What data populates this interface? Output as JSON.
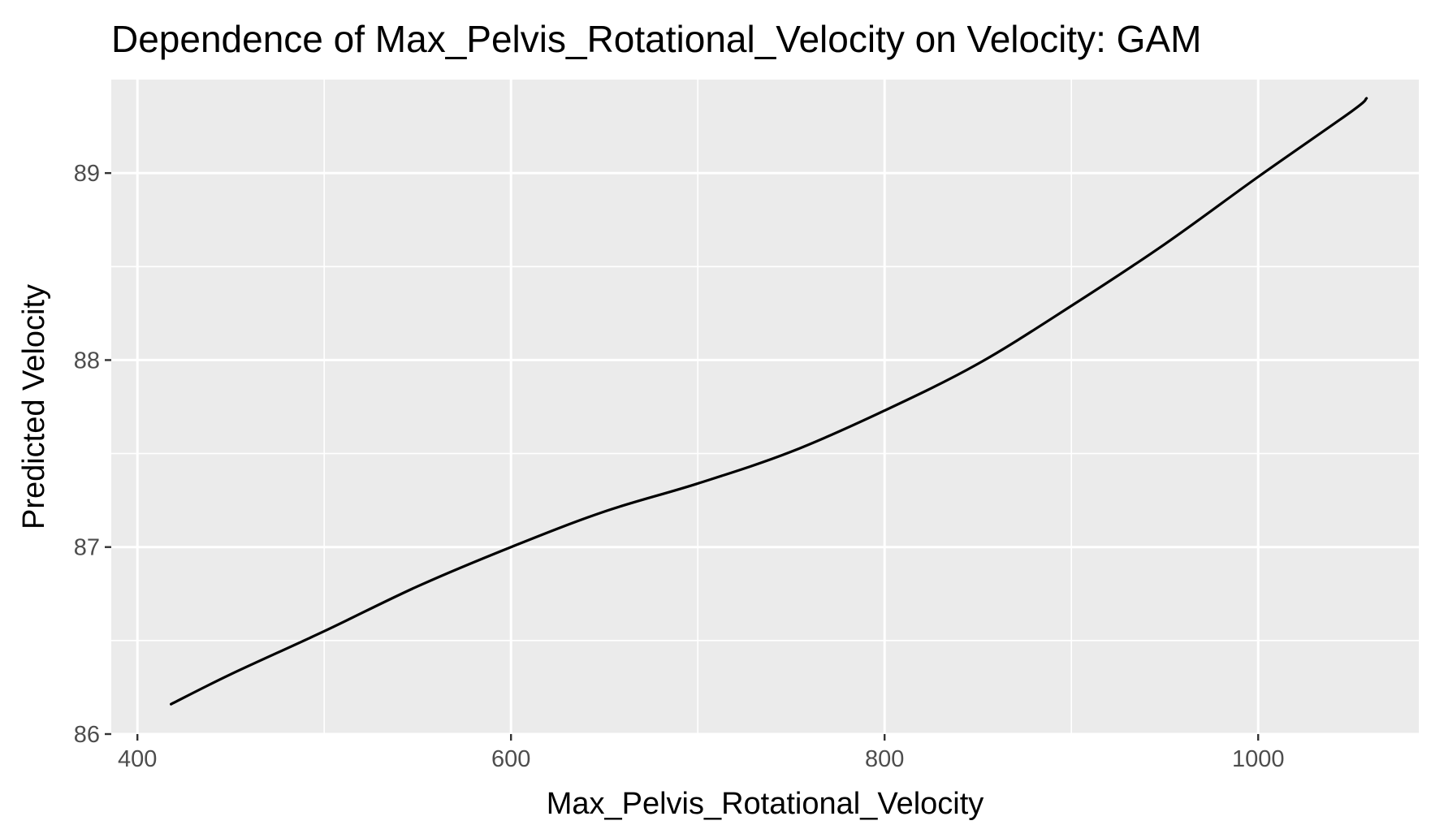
{
  "chart_data": {
    "type": "line",
    "title": "Dependence of Max_Pelvis_Rotational_Velocity on Velocity: GAM",
    "xlabel": "Max_Pelvis_Rotational_Velocity",
    "ylabel": "Predicted Velocity",
    "xlim": [
      386,
      1086
    ],
    "ylim": [
      86,
      89.5
    ],
    "x_ticks": [
      400,
      600,
      800,
      1000
    ],
    "x_tick_labels": [
      "400",
      "600",
      "800",
      "1000"
    ],
    "y_ticks": [
      86,
      87,
      88,
      89
    ],
    "y_tick_labels": [
      "86",
      "87",
      "88",
      "89"
    ],
    "x_minor": [
      500,
      700,
      900
    ],
    "y_minor": [
      86.5,
      87.5,
      88.5
    ],
    "grid": true,
    "background": "#ebebeb",
    "line_color": "#000000",
    "series": [
      {
        "x": [
          418,
          450,
          500,
          550,
          600,
          650,
          700,
          750,
          800,
          850,
          900,
          950,
          1000,
          1050,
          1058
        ],
        "y": [
          86.16,
          86.32,
          86.55,
          86.79,
          87.0,
          87.19,
          87.34,
          87.51,
          87.73,
          87.98,
          88.29,
          88.62,
          88.98,
          89.33,
          89.4
        ]
      }
    ]
  }
}
